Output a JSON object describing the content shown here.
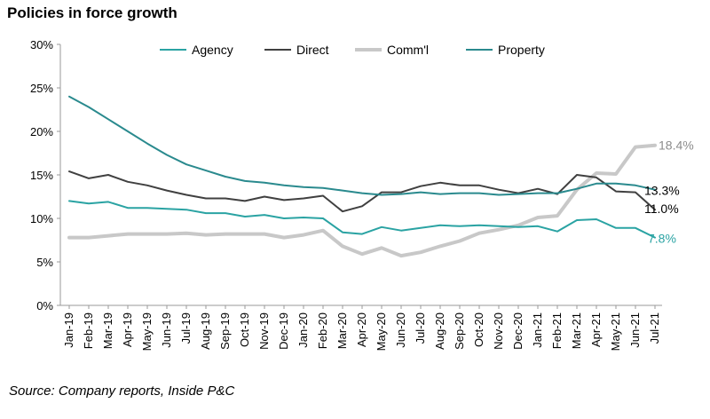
{
  "title": "Policies in force growth",
  "source": "Source: Company reports, Inside P&C",
  "chart_data": {
    "type": "line",
    "title": "Policies in force growth",
    "xlabel": "",
    "ylabel": "",
    "ylim": [
      0,
      30
    ],
    "y_ticks": [
      0,
      5,
      10,
      15,
      20,
      25,
      30
    ],
    "y_tick_labels": [
      "0%",
      "5%",
      "10%",
      "15%",
      "20%",
      "25%",
      "30%"
    ],
    "grid": false,
    "legend_position": "top",
    "categories": [
      "Jan-19",
      "Feb-19",
      "Mar-19",
      "Apr-19",
      "May-19",
      "Jun-19",
      "Jul-19",
      "Aug-19",
      "Sep-19",
      "Oct-19",
      "Nov-19",
      "Dec-19",
      "Jan-20",
      "Feb-20",
      "Mar-20",
      "Apr-20",
      "May-20",
      "Jun-20",
      "Jul-20",
      "Aug-20",
      "Sep-20",
      "Oct-20",
      "Nov-20",
      "Dec-20",
      "Jan-21",
      "Feb-21",
      "Mar-21",
      "Apr-21",
      "May-21",
      "Jun-21",
      "Jul-21"
    ],
    "series": [
      {
        "name": "Agency",
        "color": "#2aa3a3",
        "stroke_width": 2,
        "values": [
          12.0,
          11.7,
          11.9,
          11.2,
          11.2,
          11.1,
          11.0,
          10.6,
          10.6,
          10.2,
          10.4,
          10.0,
          10.1,
          10.0,
          8.4,
          8.2,
          9.0,
          8.6,
          8.9,
          9.2,
          9.1,
          9.2,
          9.1,
          9.0,
          9.1,
          8.5,
          9.8,
          9.9,
          8.9,
          8.9,
          7.8
        ],
        "end_label": "7.8%",
        "end_label_color": "#2aa3a3"
      },
      {
        "name": "Direct",
        "color": "#404040",
        "stroke_width": 2,
        "values": [
          15.4,
          14.6,
          15.0,
          14.2,
          13.8,
          13.2,
          12.7,
          12.3,
          12.3,
          12.0,
          12.5,
          12.1,
          12.3,
          12.6,
          10.8,
          11.4,
          13.0,
          13.0,
          13.7,
          14.1,
          13.8,
          13.8,
          13.3,
          12.9,
          13.4,
          12.8,
          15.0,
          14.7,
          13.1,
          13.0,
          11.0
        ],
        "end_label": "11.0%",
        "end_label_color": "#000000"
      },
      {
        "name": "Comm'l",
        "color": "#c8c8c8",
        "stroke_width": 4,
        "values": [
          7.8,
          7.8,
          8.0,
          8.2,
          8.2,
          8.2,
          8.3,
          8.1,
          8.2,
          8.2,
          8.2,
          7.8,
          8.1,
          8.6,
          6.8,
          5.9,
          6.6,
          5.7,
          6.1,
          6.8,
          7.4,
          8.3,
          8.7,
          9.2,
          10.1,
          10.3,
          13.3,
          15.2,
          15.1,
          18.2,
          18.4
        ],
        "end_label": "18.4%",
        "end_label_color": "#8c8c8c"
      },
      {
        "name": "Property",
        "color": "#2a8a8e",
        "stroke_width": 2,
        "values": [
          24.0,
          22.8,
          21.4,
          20.0,
          18.6,
          17.3,
          16.2,
          15.5,
          14.8,
          14.3,
          14.1,
          13.8,
          13.6,
          13.5,
          13.2,
          12.9,
          12.7,
          12.8,
          13.0,
          12.8,
          12.9,
          12.9,
          12.7,
          12.8,
          12.9,
          12.9,
          13.4,
          14.0,
          14.0,
          13.8,
          13.3
        ],
        "end_label": "13.3%",
        "end_label_color": "#000000"
      }
    ]
  }
}
